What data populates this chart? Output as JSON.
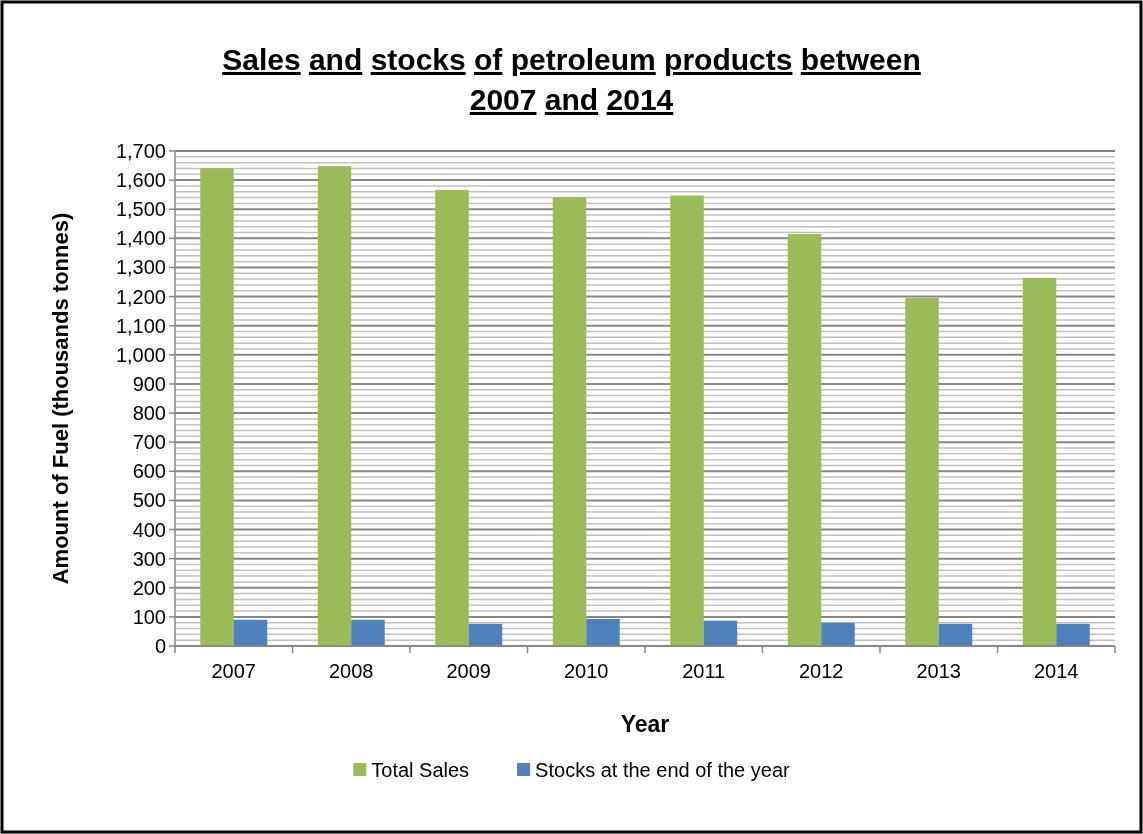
{
  "chart_data": {
    "type": "bar",
    "title": "Sales and stocks of petroleum products between 2007 and 2014",
    "xlabel": "Year",
    "ylabel": "Amount of Fuel (thousands tonnes)",
    "categories": [
      "2007",
      "2008",
      "2009",
      "2010",
      "2011",
      "2012",
      "2013",
      "2014"
    ],
    "series": [
      {
        "name": "Total Sales",
        "color": "#9bbb59",
        "values": [
          1641,
          1648,
          1566,
          1541,
          1547,
          1415,
          1195,
          1264
        ]
      },
      {
        "name": "Stocks at the end of the year",
        "color": "#4f81bd",
        "values": [
          90,
          90,
          76,
          93,
          87,
          80,
          76,
          76
        ]
      }
    ],
    "ylim": [
      0,
      1700
    ],
    "yticks": [
      0,
      {
        "value": 20,
        "label": null
      },
      {
        "value": 40,
        "label": null
      },
      {
        "value": 60,
        "label": null
      },
      {
        "value": 80,
        "label": null
      },
      100,
      {
        "value": 120,
        "label": null
      },
      {
        "value": 140,
        "label": null
      },
      {
        "value": 160,
        "label": null
      },
      {
        "value": 180,
        "label": null
      },
      200,
      {
        "value": 220,
        "label": null
      },
      {
        "value": 240,
        "label": null
      },
      {
        "value": 260,
        "label": null
      },
      {
        "value": 280,
        "label": null
      },
      300,
      {
        "value": 320,
        "label": null
      },
      {
        "value": 340,
        "label": null
      },
      {
        "value": 360,
        "label": null
      },
      {
        "value": 380,
        "label": null
      },
      400,
      {
        "value": 420,
        "label": null
      },
      {
        "value": 440,
        "label": null
      },
      {
        "value": 460,
        "label": null
      },
      {
        "value": 480,
        "label": null
      },
      500,
      {
        "value": 520,
        "label": null
      },
      {
        "value": 540,
        "label": null
      },
      {
        "value": 560,
        "label": null
      },
      {
        "value": 580,
        "label": null
      },
      600,
      {
        "value": 620,
        "label": null
      },
      {
        "value": 640,
        "label": null
      },
      {
        "value": 660,
        "label": null
      },
      {
        "value": 680,
        "label": null
      },
      700,
      {
        "value": 720,
        "label": null
      },
      {
        "value": 740,
        "label": null
      },
      {
        "value": 760,
        "label": null
      },
      {
        "value": 780,
        "label": null
      },
      800,
      {
        "value": 820,
        "label": null
      },
      {
        "value": 840,
        "label": null
      },
      {
        "value": 860,
        "label": null
      },
      {
        "value": 880,
        "label": null
      },
      900,
      {
        "value": 920,
        "label": null
      },
      {
        "value": 940,
        "label": null
      },
      {
        "value": 960,
        "label": null
      },
      {
        "value": 980,
        "label": null
      },
      {
        "value": 1000,
        "label": "1,000"
      },
      {
        "value": 1020,
        "label": null
      },
      {
        "value": 1040,
        "label": null
      },
      {
        "value": 1060,
        "label": null
      },
      {
        "value": 1080,
        "label": null
      },
      {
        "value": 1100,
        "label": "1,100"
      },
      {
        "value": 1120,
        "label": null
      },
      {
        "value": 1140,
        "label": null
      },
      {
        "value": 1160,
        "label": null
      },
      {
        "value": 1180,
        "label": null
      },
      {
        "value": 1200,
        "label": "1,200"
      },
      {
        "value": 1220,
        "label": null
      },
      {
        "value": 1240,
        "label": null
      },
      {
        "value": 1260,
        "label": null
      },
      {
        "value": 1280,
        "label": null
      },
      {
        "value": 1300,
        "label": "1,300"
      },
      {
        "value": 1320,
        "label": null
      },
      {
        "value": 1340,
        "label": null
      },
      {
        "value": 1360,
        "label": null
      },
      {
        "value": 1380,
        "label": null
      },
      {
        "value": 1400,
        "label": "1,400"
      },
      {
        "value": 1420,
        "label": null
      },
      {
        "value": 1440,
        "label": null
      },
      {
        "value": 1460,
        "label": null
      },
      {
        "value": 1480,
        "label": null
      },
      {
        "value": 1500,
        "label": "1,500"
      },
      {
        "value": 1520,
        "label": null
      },
      {
        "value": 1540,
        "label": null
      },
      {
        "value": 1560,
        "label": null
      },
      {
        "value": 1580,
        "label": null
      },
      {
        "value": 1600,
        "label": "1,600"
      },
      {
        "value": 1620,
        "label": null
      },
      {
        "value": 1640,
        "label": null
      },
      {
        "value": 1660,
        "label": null
      },
      {
        "value": 1680,
        "label": null
      },
      {
        "value": 1700,
        "label": "1,700"
      }
    ],
    "grid": "y",
    "legend": "bottom"
  }
}
